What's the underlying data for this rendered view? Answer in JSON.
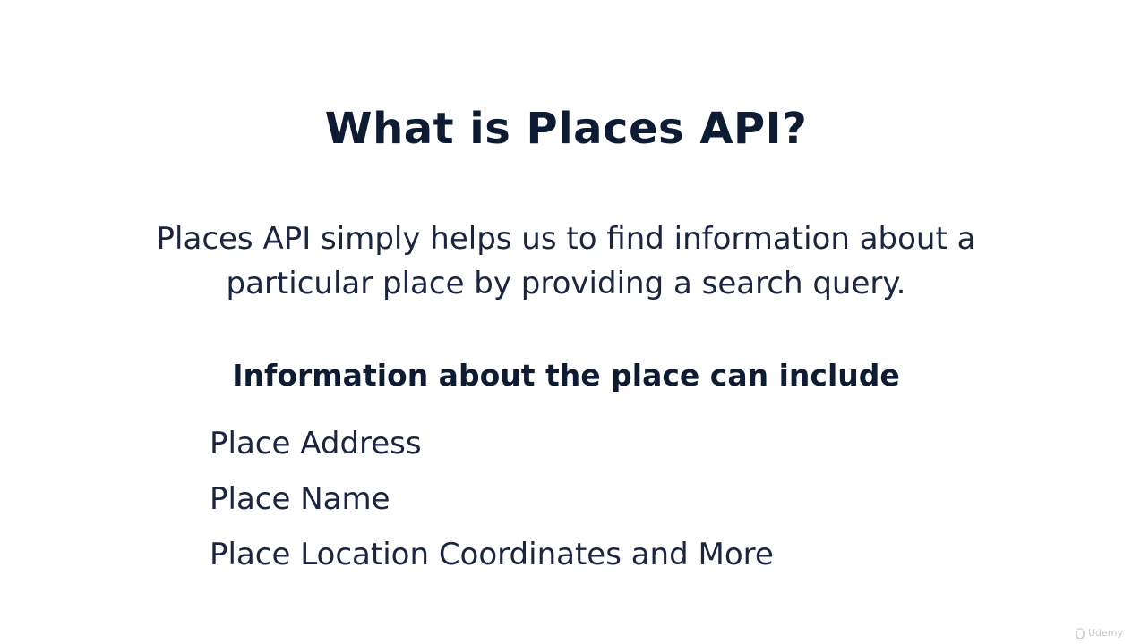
{
  "slide": {
    "title": "What is Places API?",
    "description_lines": [
      "Places API simply helps us to find information about a",
      "particular place by providing a search query."
    ],
    "subheading": "Information about the place can include",
    "items": [
      "Place Address",
      "Place Name",
      "Place Location Coordinates and More"
    ]
  },
  "watermark": {
    "label": "Udemy",
    "icon": "udemy-logo-icon"
  },
  "colors": {
    "text_dark": "#0d1b33",
    "background": "#ffffff"
  }
}
